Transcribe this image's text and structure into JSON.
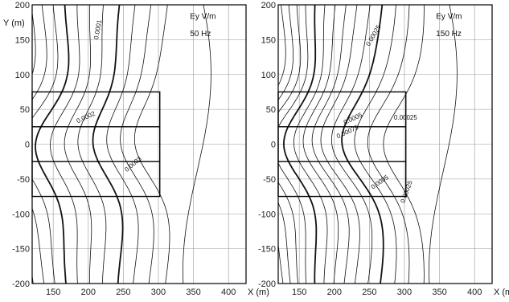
{
  "chart_data": [
    {
      "type": "contour",
      "xlabel": "X (m)",
      "ylabel": "Y (m)",
      "quantity": "Ey  V/m",
      "frequency": "50 Hz",
      "xlim": [
        120,
        425
      ],
      "ylim": [
        -200,
        200
      ],
      "x_ticks": [
        150,
        200,
        250,
        300,
        350,
        400
      ],
      "y_ticks": [
        200,
        150,
        100,
        50,
        0,
        -50,
        -100,
        -150,
        -200
      ],
      "grid": true,
      "contour_labels": [
        "0.0001",
        "0.0002",
        "0.0003"
      ],
      "outer_rectangle": {
        "x": [
          120,
          302
        ],
        "y": [
          -75,
          75
        ]
      },
      "inner_band": {
        "y": [
          -25,
          25
        ]
      }
    },
    {
      "type": "contour",
      "xlabel": "X (m)",
      "ylabel": "",
      "quantity": "Ey  V/m",
      "frequency": "150 Hz",
      "xlim": [
        120,
        425
      ],
      "ylim": [
        -200,
        200
      ],
      "x_ticks": [
        150,
        200,
        250,
        300,
        350,
        400
      ],
      "y_ticks": [
        200,
        150,
        100,
        50,
        0,
        -50,
        -100,
        -150,
        -200
      ],
      "grid": true,
      "contour_labels": [
        "0.00025",
        "0.00025",
        "0.0005",
        "0.00075",
        "0.0005",
        "0.00025"
      ],
      "outer_rectangle": {
        "x": [
          120,
          302
        ],
        "y": [
          -75,
          75
        ]
      },
      "inner_band": {
        "y": [
          -25,
          25
        ]
      }
    }
  ]
}
